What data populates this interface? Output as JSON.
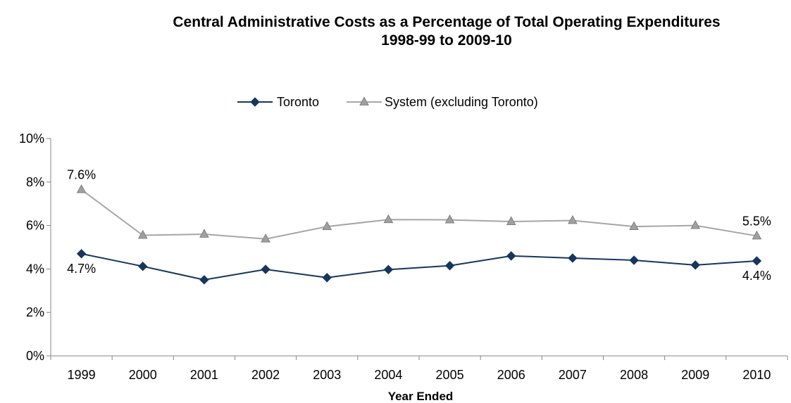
{
  "chart_data": {
    "type": "line",
    "title": "Central Administrative Costs as a Percentage of Total Operating Expenditures",
    "subtitle": "1998-99 to 2009-10",
    "xlabel": "Year Ended",
    "ylabel": "",
    "x": [
      "1999",
      "2000",
      "2001",
      "2002",
      "2003",
      "2004",
      "2005",
      "2006",
      "2007",
      "2008",
      "2009",
      "2010"
    ],
    "ylim": [
      0,
      10
    ],
    "yticks": [
      0,
      2,
      4,
      6,
      8,
      10
    ],
    "ytick_labels": [
      "0%",
      "2%",
      "4%",
      "6%",
      "8%",
      "10%"
    ],
    "grid": false,
    "legend_position": "top-center",
    "series": [
      {
        "name": "Toronto",
        "color": "#17365d",
        "marker": "diamond",
        "values": [
          4.7,
          4.12,
          3.5,
          3.98,
          3.6,
          3.97,
          4.15,
          4.6,
          4.5,
          4.4,
          4.18,
          4.37
        ],
        "labels": [
          {
            "index": 0,
            "text": "4.7%",
            "placement": "below"
          },
          {
            "index": 11,
            "text": "4.4%",
            "placement": "below"
          }
        ]
      },
      {
        "name": "System (excluding Toronto)",
        "color": "#a6a6a6",
        "marker": "triangle",
        "values": [
          7.65,
          5.55,
          5.6,
          5.38,
          5.95,
          6.27,
          6.26,
          6.18,
          6.23,
          5.95,
          6.0,
          5.52
        ],
        "labels": [
          {
            "index": 0,
            "text": "7.6%",
            "placement": "above"
          },
          {
            "index": 11,
            "text": "5.5%",
            "placement": "above"
          }
        ]
      }
    ]
  }
}
